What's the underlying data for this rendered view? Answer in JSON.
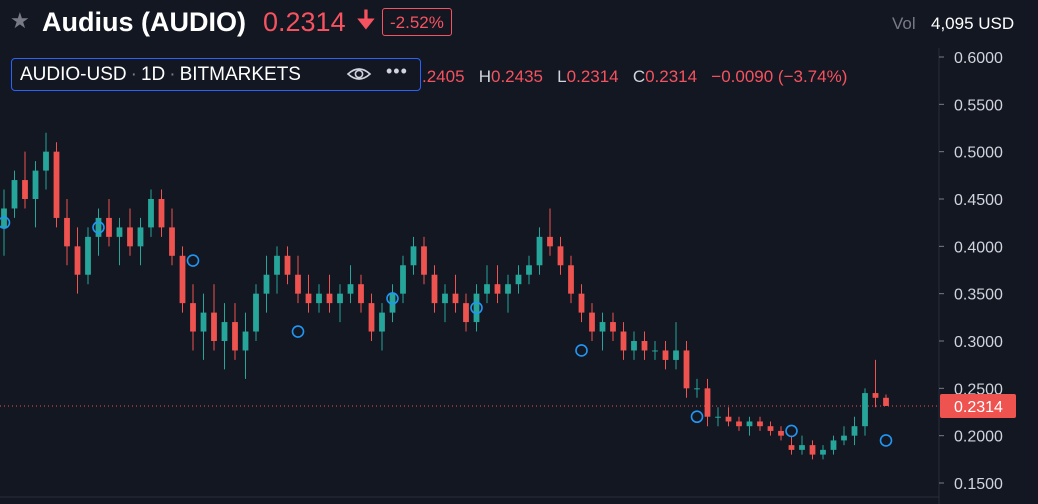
{
  "header": {
    "name": "Audius (AUDIO)",
    "price": "0.2314",
    "change_pct": "-2.52%",
    "vol_label": "Vol",
    "vol_value": "4,095 USD",
    "price_color": "#f7525f"
  },
  "legend": {
    "symbol": "AUDIO-USD",
    "interval": "1D",
    "exchange": "BITMARKETS",
    "ohlc": [
      {
        "k": "",
        "v": ".2405"
      },
      {
        "k": "H",
        "v": "0.2435"
      },
      {
        "k": "L",
        "v": "0.2314"
      },
      {
        "k": "C",
        "v": "0.2314"
      },
      {
        "k": "",
        "v": "−0.0090 (−3.74%)"
      }
    ]
  },
  "chart_data": {
    "type": "candlestick",
    "symbol": "AUDIO-USD",
    "interval": "1D",
    "ylim": [
      0.14,
      0.61
    ],
    "y_ticks": [
      "0.6000",
      "0.5500",
      "0.5000",
      "0.4500",
      "0.4000",
      "0.3500",
      "0.3000",
      "0.2500",
      "0.2000",
      "0.1500"
    ],
    "last_price": "0.2314",
    "last_price_value": 0.2314,
    "up_color": "#26a69a",
    "down_color": "#ef5350",
    "series": [
      {
        "values": [
          [
            0.42,
            0.46,
            0.39,
            0.44
          ],
          [
            0.44,
            0.48,
            0.43,
            0.47
          ],
          [
            0.47,
            0.5,
            0.44,
            0.45
          ],
          [
            0.45,
            0.49,
            0.42,
            0.48
          ],
          [
            0.48,
            0.52,
            0.46,
            0.5
          ],
          [
            0.5,
            0.51,
            0.42,
            0.43
          ],
          [
            0.43,
            0.45,
            0.38,
            0.4
          ],
          [
            0.4,
            0.42,
            0.35,
            0.37
          ],
          [
            0.37,
            0.42,
            0.36,
            0.41
          ],
          [
            0.41,
            0.44,
            0.39,
            0.43
          ],
          [
            0.43,
            0.45,
            0.4,
            0.41
          ],
          [
            0.41,
            0.43,
            0.38,
            0.42
          ],
          [
            0.42,
            0.44,
            0.39,
            0.4
          ],
          [
            0.4,
            0.43,
            0.38,
            0.42
          ],
          [
            0.42,
            0.46,
            0.41,
            0.45
          ],
          [
            0.45,
            0.46,
            0.41,
            0.42
          ],
          [
            0.42,
            0.44,
            0.38,
            0.39
          ],
          [
            0.39,
            0.4,
            0.33,
            0.34
          ],
          [
            0.34,
            0.36,
            0.29,
            0.31
          ],
          [
            0.31,
            0.35,
            0.28,
            0.33
          ],
          [
            0.33,
            0.36,
            0.29,
            0.3
          ],
          [
            0.3,
            0.34,
            0.27,
            0.32
          ],
          [
            0.32,
            0.34,
            0.28,
            0.29
          ],
          [
            0.29,
            0.33,
            0.26,
            0.31
          ],
          [
            0.31,
            0.36,
            0.3,
            0.35
          ],
          [
            0.35,
            0.39,
            0.33,
            0.37
          ],
          [
            0.37,
            0.4,
            0.35,
            0.39
          ],
          [
            0.39,
            0.4,
            0.36,
            0.37
          ],
          [
            0.37,
            0.39,
            0.34,
            0.35
          ],
          [
            0.35,
            0.37,
            0.33,
            0.34
          ],
          [
            0.34,
            0.36,
            0.33,
            0.35
          ],
          [
            0.35,
            0.37,
            0.33,
            0.34
          ],
          [
            0.34,
            0.36,
            0.32,
            0.35
          ],
          [
            0.35,
            0.38,
            0.34,
            0.36
          ],
          [
            0.36,
            0.37,
            0.33,
            0.34
          ],
          [
            0.34,
            0.35,
            0.3,
            0.31
          ],
          [
            0.31,
            0.34,
            0.29,
            0.33
          ],
          [
            0.33,
            0.36,
            0.32,
            0.35
          ],
          [
            0.35,
            0.39,
            0.34,
            0.38
          ],
          [
            0.38,
            0.41,
            0.37,
            0.4
          ],
          [
            0.4,
            0.41,
            0.36,
            0.37
          ],
          [
            0.37,
            0.38,
            0.33,
            0.34
          ],
          [
            0.34,
            0.36,
            0.32,
            0.35
          ],
          [
            0.35,
            0.37,
            0.33,
            0.34
          ],
          [
            0.34,
            0.35,
            0.31,
            0.32
          ],
          [
            0.32,
            0.36,
            0.31,
            0.35
          ],
          [
            0.35,
            0.38,
            0.34,
            0.36
          ],
          [
            0.36,
            0.38,
            0.34,
            0.35
          ],
          [
            0.35,
            0.37,
            0.33,
            0.36
          ],
          [
            0.36,
            0.38,
            0.35,
            0.37
          ],
          [
            0.37,
            0.39,
            0.36,
            0.38
          ],
          [
            0.38,
            0.42,
            0.37,
            0.41
          ],
          [
            0.41,
            0.44,
            0.39,
            0.4
          ],
          [
            0.4,
            0.41,
            0.37,
            0.38
          ],
          [
            0.38,
            0.39,
            0.34,
            0.35
          ],
          [
            0.35,
            0.36,
            0.32,
            0.33
          ],
          [
            0.33,
            0.34,
            0.3,
            0.31
          ],
          [
            0.31,
            0.33,
            0.29,
            0.32
          ],
          [
            0.32,
            0.33,
            0.3,
            0.31
          ],
          [
            0.31,
            0.32,
            0.28,
            0.29
          ],
          [
            0.29,
            0.31,
            0.28,
            0.3
          ],
          [
            0.3,
            0.31,
            0.28,
            0.29
          ],
          [
            0.29,
            0.3,
            0.28,
            0.29
          ],
          [
            0.29,
            0.3,
            0.27,
            0.28
          ],
          [
            0.28,
            0.32,
            0.27,
            0.29
          ],
          [
            0.29,
            0.3,
            0.24,
            0.25
          ],
          [
            0.25,
            0.26,
            0.24,
            0.25
          ],
          [
            0.25,
            0.26,
            0.21,
            0.22
          ],
          [
            0.22,
            0.23,
            0.21,
            0.22
          ],
          [
            0.22,
            0.23,
            0.21,
            0.215
          ],
          [
            0.215,
            0.22,
            0.205,
            0.21
          ],
          [
            0.21,
            0.22,
            0.2,
            0.215
          ],
          [
            0.215,
            0.22,
            0.205,
            0.21
          ],
          [
            0.21,
            0.215,
            0.2,
            0.205
          ],
          [
            0.205,
            0.21,
            0.195,
            0.2
          ],
          [
            0.19,
            0.2,
            0.18,
            0.185
          ],
          [
            0.185,
            0.2,
            0.18,
            0.19
          ],
          [
            0.19,
            0.195,
            0.175,
            0.18
          ],
          [
            0.18,
            0.19,
            0.175,
            0.185
          ],
          [
            0.185,
            0.2,
            0.18,
            0.195
          ],
          [
            0.195,
            0.21,
            0.19,
            0.2
          ],
          [
            0.2,
            0.22,
            0.19,
            0.21
          ],
          [
            0.21,
            0.25,
            0.2,
            0.245
          ],
          [
            0.245,
            0.28,
            0.23,
            0.24
          ],
          [
            0.24,
            0.2435,
            0.2314,
            0.2314
          ]
        ]
      }
    ],
    "markers": [
      0.425,
      0.42,
      0.385,
      0.31,
      0.345,
      0.335,
      0.29,
      0.22,
      0.205,
      0.195
    ]
  }
}
